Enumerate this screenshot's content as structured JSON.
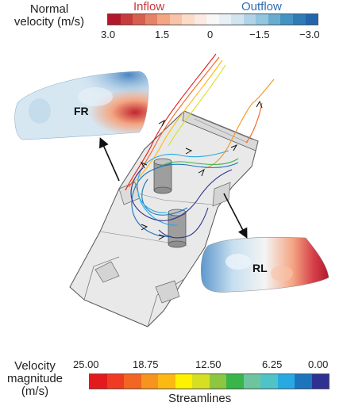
{
  "normal_velocity": {
    "title_line1": "Normal",
    "title_line2": "velocity (m/s)",
    "inflow_label": "Inflow",
    "outflow_label": "Outflow",
    "ticks": [
      "3.0",
      "1.5",
      "0",
      "−1.5",
      "−3.0"
    ],
    "colors": [
      "#b2182b",
      "#c43c3c",
      "#d6604d",
      "#e58368",
      "#f4a582",
      "#f8c3a8",
      "#fddbc7",
      "#fbe9e2",
      "#f7f7f7",
      "#e8f0f6",
      "#d1e5f0",
      "#b1d3e7",
      "#92c5de",
      "#6aacd0",
      "#4393c3",
      "#2f7bb6",
      "#2166ac"
    ],
    "inflow_color": "#c8383d",
    "outflow_color": "#2f6db3"
  },
  "velocity_magnitude": {
    "title_line1": "Velocity",
    "title_line2": "magnitude",
    "title_line3": "(m/s)",
    "ticks": [
      "25.00",
      "18.75",
      "12.50",
      "6.25",
      "0.00"
    ],
    "colors": [
      "#e31a1c",
      "#ee3b22",
      "#f26522",
      "#f7941d",
      "#fdb913",
      "#fff200",
      "#d7df23",
      "#8dc63f",
      "#39b54a",
      "#6dc5a0",
      "#4fc3c8",
      "#27aae1",
      "#1c75bc",
      "#2e3192"
    ],
    "caption": "Streamlines"
  },
  "panels": {
    "fr_label": "FR",
    "rl_label": "RL"
  }
}
